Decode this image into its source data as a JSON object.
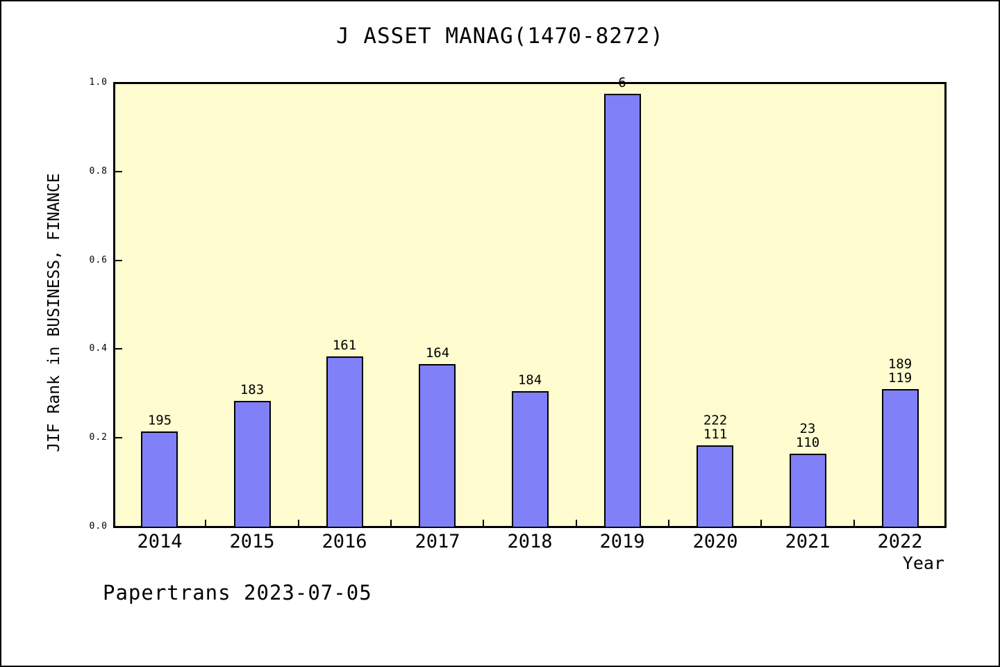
{
  "title": "J ASSET MANAG(1470-8272)",
  "footer": "Papertrans 2023-07-05",
  "chart_data": {
    "type": "bar",
    "title": "J ASSET MANAG(1470-8272)",
    "xlabel": "Year",
    "ylabel": "JIF Rank in BUSINESS, FINANCE",
    "categories": [
      "2014",
      "2015",
      "2016",
      "2017",
      "2018",
      "2019",
      "2020",
      "2021",
      "2022"
    ],
    "values": [
      0.214,
      0.283,
      0.383,
      0.366,
      0.305,
      0.975,
      0.183,
      0.164,
      0.31
    ],
    "bar_labels": [
      "195",
      "183",
      "161",
      "164",
      "184",
      "6",
      "222\n111",
      "23\n110",
      "189\n119"
    ],
    "ylim": [
      0,
      1
    ],
    "yticks": [
      "0.0",
      "0.2",
      "0.4",
      "0.6",
      "0.8",
      "1.0"
    ],
    "grid": false,
    "legend": null,
    "colors": {
      "bar_fill": "#8080F8",
      "bar_border": "#000000",
      "plot_background": "#FFFDD0",
      "axis": "#000000",
      "text": "#000000",
      "page_background": "#FFFFFF"
    }
  }
}
